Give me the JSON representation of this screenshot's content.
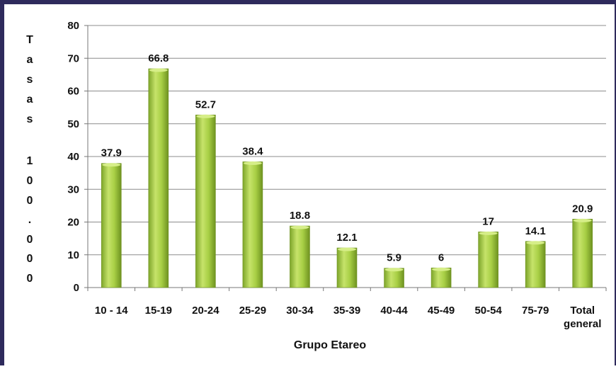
{
  "chart_data": {
    "type": "bar",
    "categories": [
      "10 - 14",
      "15-19",
      "20-24",
      "25-29",
      "30-34",
      "35-39",
      "40-44",
      "45-49",
      "50-54",
      "75-79",
      "Total general"
    ],
    "values": [
      37.9,
      66.8,
      52.7,
      38.4,
      18.8,
      12.1,
      5.9,
      6,
      17,
      14.1,
      20.9
    ],
    "data_labels": [
      "37.9",
      "66.8",
      "52.7",
      "38.4",
      "18.8",
      "12.1",
      "5.9",
      "6",
      "17",
      "14.1",
      "20.9"
    ],
    "xlabel": "Grupo Etareo",
    "ylabel": "Tasas 100.000",
    "ylim": [
      0,
      80
    ],
    "yticks": [
      0,
      10,
      20,
      30,
      40,
      50,
      60,
      70,
      80
    ],
    "grid": true,
    "legend": "none",
    "colors": {
      "bar_light": "#c6e36a",
      "bar_mid": "#98c23a",
      "bar_dark": "#6e9220",
      "grid": "#8c8c8c"
    }
  }
}
